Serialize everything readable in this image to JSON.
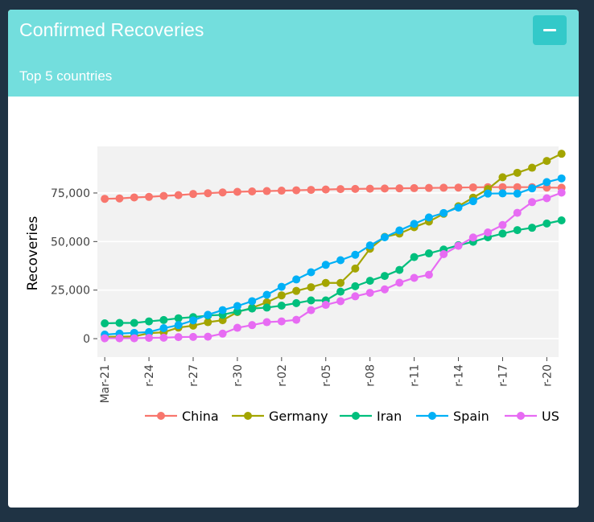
{
  "header": {
    "title": "Confirmed Recoveries",
    "subtitle": "Top 5 countries",
    "collapse_icon": "minus-icon"
  },
  "chart_data": {
    "type": "line",
    "xlabel": "",
    "ylabel": "Recoveries",
    "xlim": [
      0.5,
      31.8
    ],
    "ylim": [
      -9500,
      99000
    ],
    "yticks": [
      0,
      25000,
      50000,
      75000
    ],
    "ytick_labels": [
      "0",
      "25,000",
      "50,000",
      "75,000"
    ],
    "xticks": [
      1,
      4,
      7,
      10,
      13,
      16,
      19,
      22,
      25,
      28,
      31
    ],
    "xtick_labels": [
      "Mar-21",
      "r-24",
      "r-27",
      "r-30",
      "r-02",
      "r-05",
      "r-08",
      "r-11",
      "r-14",
      "r-17",
      "r-20"
    ],
    "grid": true,
    "legend_position": "bottom",
    "x": [
      1,
      2,
      3,
      4,
      5,
      6,
      7,
      8,
      9,
      10,
      11,
      12,
      13,
      14,
      15,
      16,
      17,
      18,
      19,
      20,
      21,
      22,
      23,
      24,
      25,
      26,
      27,
      28,
      29,
      30,
      31,
      32
    ],
    "series": [
      {
        "name": "China",
        "color": "#f8766d",
        "values": [
          72000,
          72200,
          72700,
          73000,
          73500,
          73900,
          74500,
          74900,
          75300,
          75600,
          75800,
          76000,
          76200,
          76400,
          76600,
          76800,
          77000,
          77100,
          77200,
          77300,
          77400,
          77500,
          77600,
          77700,
          77800,
          77900,
          78000,
          78000,
          78000,
          78000,
          77800,
          77700
        ]
      },
      {
        "name": "Germany",
        "color": "#a3a500",
        "values": [
          900,
          1000,
          1200,
          2800,
          3300,
          5700,
          6700,
          8500,
          9500,
          13700,
          15900,
          18700,
          22300,
          24600,
          26500,
          28700,
          28700,
          36100,
          46300,
          52400,
          54100,
          57400,
          60300,
          64300,
          68200,
          72600,
          77000,
          83100,
          85400,
          88000,
          91500,
          95200
        ]
      },
      {
        "name": "Iran",
        "color": "#00bf7d",
        "values": [
          7900,
          8100,
          8100,
          8900,
          9600,
          10500,
          11100,
          11900,
          12300,
          14000,
          15500,
          16000,
          17000,
          18300,
          19700,
          19700,
          24200,
          27000,
          29800,
          32300,
          35400,
          42000,
          43900,
          45900,
          48100,
          49900,
          52200,
          54100,
          55900,
          57100,
          59300,
          60900
        ]
      },
      {
        "name": "Spain",
        "color": "#00b0f6",
        "values": [
          2100,
          2600,
          3000,
          3400,
          5400,
          7000,
          9400,
          12300,
          14700,
          16800,
          19300,
          22600,
          26700,
          30500,
          34200,
          38000,
          40400,
          43200,
          48000,
          52200,
          55700,
          59100,
          62400,
          64700,
          67500,
          70800,
          74700,
          74800,
          74700,
          77400,
          80600,
          82500
        ]
      },
      {
        "name": "US",
        "color": "#e76bf3",
        "values": [
          200,
          200,
          200,
          400,
          500,
          800,
          900,
          1000,
          2600,
          5600,
          7000,
          8500,
          8900,
          9700,
          14700,
          17400,
          19300,
          21800,
          23600,
          25400,
          28800,
          31300,
          32900,
          43500,
          47800,
          52100,
          54700,
          58500,
          64800,
          70300,
          72300,
          75200
        ]
      }
    ]
  }
}
